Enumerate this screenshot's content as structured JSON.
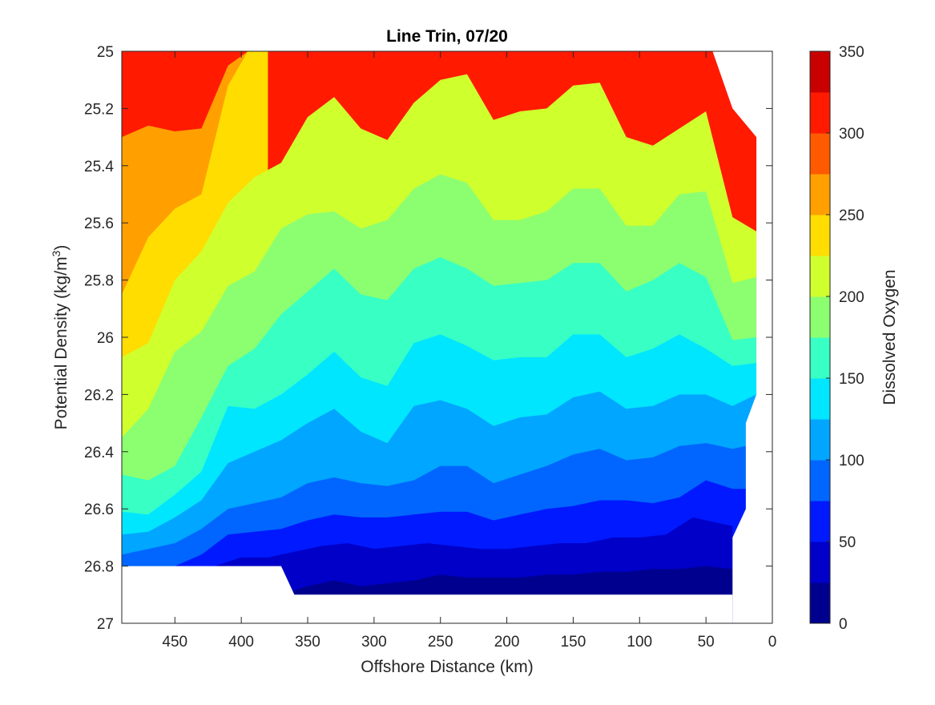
{
  "chart_data": {
    "type": "filled-contour",
    "title": "Line Trin, 07/20",
    "xlabel": "Offshore Distance (km)",
    "ylabel_main": "Potential Density (kg/m",
    "ylabel_sup": "3",
    "ylabel_end": ")",
    "colorbar_label": "Dissolved Oxygen",
    "x_axis": {
      "range": [
        490,
        0
      ],
      "direction": "reversed",
      "ticks": [
        450,
        400,
        350,
        300,
        250,
        200,
        150,
        100,
        50,
        0
      ],
      "tick_labels": [
        "450",
        "400",
        "350",
        "300",
        "250",
        "200",
        "150",
        "100",
        "50",
        "0"
      ]
    },
    "y_axis": {
      "range": [
        25,
        27
      ],
      "direction": "reversed",
      "ticks": [
        25,
        25.2,
        25.4,
        25.6,
        25.8,
        26,
        26.2,
        26.4,
        26.6,
        26.8,
        27
      ],
      "tick_labels": [
        "25",
        "25.2",
        "25.4",
        "25.6",
        "25.8",
        "26",
        "26.2",
        "26.4",
        "26.6",
        "26.8",
        "27"
      ]
    },
    "colorbar": {
      "range": [
        0,
        350
      ],
      "ticks": [
        0,
        50,
        100,
        150,
        200,
        250,
        300,
        350
      ],
      "tick_labels": [
        "0",
        "50",
        "100",
        "150",
        "200",
        "250",
        "300",
        "350"
      ],
      "levels": [
        0,
        25,
        50,
        75,
        100,
        125,
        150,
        175,
        200,
        225,
        250,
        275,
        300,
        325,
        350
      ],
      "colors": [
        "#00008f",
        "#0000c8",
        "#0019ff",
        "#0066ff",
        "#00a6ff",
        "#00e6ff",
        "#38ffc4",
        "#8cff70",
        "#d0ff2e",
        "#ffdd00",
        "#ff9f00",
        "#ff5a00",
        "#ff1a00",
        "#c80000"
      ]
    },
    "data_extent": {
      "x_deep_left": [
        490,
        360
      ],
      "deep_step_sigma": 26.8,
      "sigma_max": 26.9,
      "offshore_edge": [
        [
          45,
          25
        ],
        [
          30,
          25.2
        ],
        [
          12,
          25.3
        ],
        [
          12,
          26.2
        ],
        [
          20,
          26.3
        ],
        [
          20,
          26.6
        ],
        [
          30,
          26.7
        ],
        [
          30,
          26.9
        ]
      ]
    },
    "contours": [
      {
        "level": 275,
        "x": [
          490,
          470,
          450,
          430,
          410,
          395,
          380
        ],
        "sigma": [
          25.3,
          25.26,
          25.28,
          25.27,
          25.05,
          25,
          25
        ]
      },
      {
        "level": 250,
        "x": [
          490,
          470,
          450,
          430,
          410,
          395,
          380
        ],
        "sigma": [
          25.85,
          25.65,
          25.55,
          25.5,
          25.12,
          25,
          25
        ]
      },
      {
        "level": 225,
        "x": [
          490,
          470,
          450,
          430,
          410,
          390,
          370,
          350,
          330,
          310,
          290,
          270,
          250,
          230,
          210,
          190,
          170,
          150,
          130,
          110,
          90,
          70,
          50,
          30,
          12
        ],
        "sigma": [
          26.07,
          26.02,
          25.8,
          25.7,
          25.53,
          25.44,
          25.39,
          25.23,
          25.16,
          25.27,
          25.31,
          25.18,
          25.1,
          25.08,
          25.24,
          25.21,
          25.2,
          25.12,
          25.11,
          25.3,
          25.33,
          25.27,
          25.21,
          25.58,
          25.63
        ]
      },
      {
        "level": 200,
        "x": [
          490,
          470,
          450,
          430,
          410,
          390,
          370,
          350,
          330,
          310,
          290,
          270,
          250,
          230,
          210,
          190,
          170,
          150,
          130,
          110,
          90,
          70,
          50,
          30,
          12
        ],
        "sigma": [
          26.35,
          26.25,
          26.05,
          25.98,
          25.82,
          25.77,
          25.62,
          25.57,
          25.56,
          25.62,
          25.59,
          25.48,
          25.43,
          25.46,
          25.59,
          25.59,
          25.56,
          25.48,
          25.48,
          25.61,
          25.61,
          25.5,
          25.49,
          25.81,
          25.79
        ]
      },
      {
        "level": 175,
        "x": [
          490,
          470,
          450,
          430,
          410,
          390,
          370,
          350,
          330,
          310,
          290,
          270,
          250,
          230,
          210,
          190,
          170,
          150,
          130,
          110,
          90,
          70,
          50,
          30,
          12
        ],
        "sigma": [
          26.48,
          26.5,
          26.45,
          26.28,
          26.1,
          26.04,
          25.92,
          25.84,
          25.76,
          25.85,
          25.87,
          25.76,
          25.72,
          25.76,
          25.82,
          25.81,
          25.8,
          25.74,
          25.74,
          25.84,
          25.8,
          25.74,
          25.79,
          26.01,
          26
        ]
      },
      {
        "level": 150,
        "x": [
          490,
          470,
          450,
          430,
          410,
          390,
          370,
          350,
          330,
          310,
          290,
          270,
          250,
          230,
          210,
          190,
          170,
          150,
          130,
          110,
          90,
          70,
          50,
          30,
          12
        ],
        "sigma": [
          26.61,
          26.62,
          26.55,
          26.47,
          26.24,
          26.25,
          26.2,
          26.13,
          26.05,
          26.14,
          26.17,
          26.02,
          25.99,
          26.03,
          26.08,
          26.07,
          26.07,
          25.99,
          25.99,
          26.07,
          26.04,
          25.99,
          26.04,
          26.1,
          26.09
        ]
      },
      {
        "level": 125,
        "x": [
          490,
          470,
          450,
          430,
          410,
          390,
          370,
          350,
          330,
          310,
          290,
          270,
          250,
          230,
          210,
          190,
          170,
          150,
          130,
          110,
          90,
          70,
          50,
          30,
          12
        ],
        "sigma": [
          26.69,
          26.68,
          26.63,
          26.57,
          26.44,
          26.4,
          26.36,
          26.3,
          26.25,
          26.33,
          26.37,
          26.24,
          26.22,
          26.25,
          26.31,
          26.28,
          26.27,
          26.21,
          26.19,
          26.25,
          26.24,
          26.2,
          26.2,
          26.24,
          26.2
        ]
      },
      {
        "level": 100,
        "x": [
          490,
          470,
          450,
          430,
          410,
          390,
          370,
          350,
          330,
          310,
          290,
          270,
          250,
          230,
          210,
          190,
          170,
          150,
          130,
          110,
          90,
          70,
          50,
          30,
          20
        ],
        "sigma": [
          26.76,
          26.74,
          26.72,
          26.67,
          26.6,
          26.58,
          26.56,
          26.51,
          26.49,
          26.51,
          26.52,
          26.5,
          26.45,
          26.45,
          26.51,
          26.48,
          26.45,
          26.41,
          26.39,
          26.43,
          26.42,
          26.38,
          26.37,
          26.39,
          26.38
        ]
      },
      {
        "level": 75,
        "x": [
          490,
          470,
          450,
          430,
          410,
          390,
          370,
          350,
          330,
          310,
          290,
          270,
          250,
          230,
          210,
          190,
          170,
          150,
          130,
          110,
          90,
          70,
          50,
          30,
          20
        ],
        "sigma": [
          26.8,
          26.8,
          26.8,
          26.76,
          26.69,
          26.68,
          26.67,
          26.64,
          26.62,
          26.63,
          26.63,
          26.62,
          26.61,
          26.61,
          26.64,
          26.62,
          26.6,
          26.59,
          26.57,
          26.57,
          26.58,
          26.56,
          26.5,
          26.53,
          26.53
        ]
      },
      {
        "level": 50,
        "x": [
          420,
          400,
          380,
          360,
          340,
          320,
          300,
          280,
          260,
          240,
          220,
          200,
          180,
          160,
          140,
          120,
          100,
          80,
          60,
          50,
          30
        ],
        "sigma": [
          26.8,
          26.77,
          26.77,
          26.75,
          26.73,
          26.72,
          26.74,
          26.73,
          26.72,
          26.73,
          26.74,
          26.74,
          26.73,
          26.72,
          26.72,
          26.7,
          26.7,
          26.69,
          26.63,
          26.64,
          26.66
        ]
      },
      {
        "level": 25,
        "x": [
          370,
          350,
          330,
          310,
          290,
          270,
          250,
          230,
          210,
          190,
          170,
          150,
          130,
          110,
          90,
          70,
          50,
          30
        ],
        "sigma": [
          26.9,
          26.87,
          26.85,
          26.87,
          26.86,
          26.85,
          26.83,
          26.84,
          26.84,
          26.84,
          26.83,
          26.83,
          26.82,
          26.82,
          26.81,
          26.81,
          26.8,
          26.81
        ]
      },
      {
        "level": 300,
        "x": [
          45,
          40,
          35,
          31,
          28,
          24
        ],
        "sigma": [
          25,
          25.11,
          25.15,
          25.3,
          25.27,
          25.25
        ]
      }
    ]
  }
}
